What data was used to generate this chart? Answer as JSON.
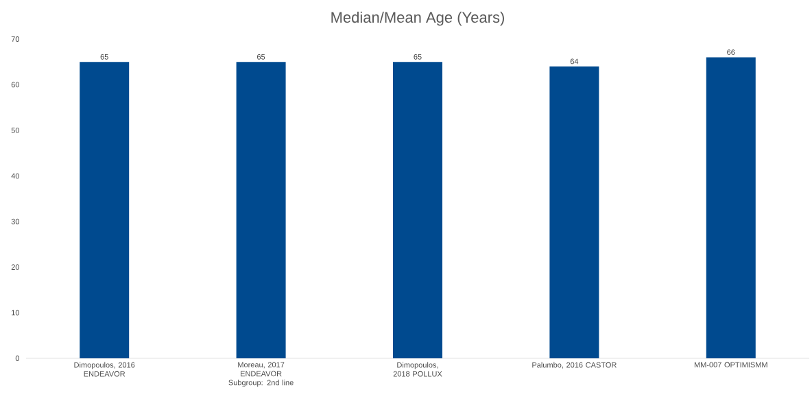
{
  "chart_data": {
    "type": "bar",
    "title": "Median/Mean Age (Years)",
    "categories": [
      "Dimopoulos, 2016 ENDEAVOR",
      "Moreau, 2017 ENDEAVOR Subgroup: 2nd line",
      "Dimopoulos, 2018 POLLUX",
      "Palumbo, 2016 CASTOR",
      "MM-007 OPTIMISMM"
    ],
    "values": [
      65,
      65,
      65,
      64,
      66
    ],
    "color": "#004a8f",
    "ylim": [
      0,
      70
    ],
    "yticks": [
      0,
      10,
      20,
      30,
      40,
      50,
      60,
      70
    ],
    "data_labels": true
  }
}
